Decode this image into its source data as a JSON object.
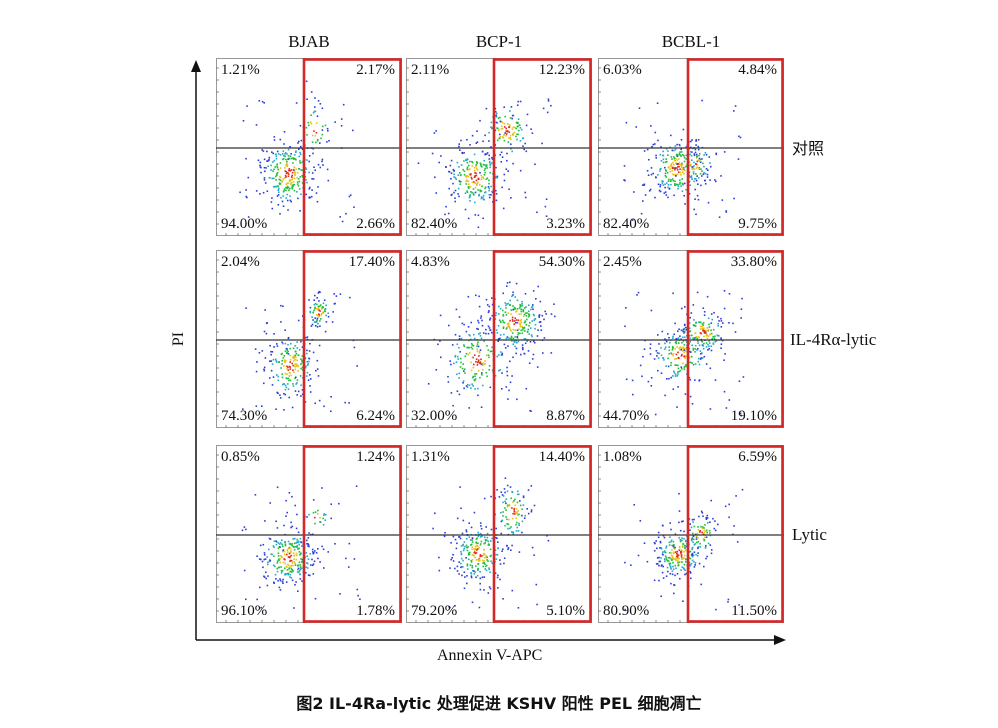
{
  "figure": {
    "columns": [
      "BJAB",
      "BCP-1",
      "BCBL-1"
    ],
    "rows": [
      "对照",
      "IL-4Rα-lytic",
      "Lytic"
    ],
    "y_axis_label": "PI",
    "x_axis_label": "Annexin V-APC",
    "caption": "图2  IL-4Ra-lytic 处理促进 KSHV 阳性 PEL 细胞凋亡",
    "colors": {
      "gate": "#d62728",
      "gridline": "#333333",
      "panel_border": "#999999",
      "density_low": "#2b3fd6",
      "density_mid": "#1fbf3a",
      "density_high": "#e8c21a",
      "density_peak": "#e02a1a"
    }
  },
  "panels": [
    {
      "row": 0,
      "col": 0,
      "ul": "1.21%",
      "ur": "2.17%",
      "ll": "94.00%",
      "lr": "2.66%"
    },
    {
      "row": 0,
      "col": 1,
      "ul": "2.11%",
      "ur": "12.23%",
      "ll": "82.40%",
      "lr": "3.23%"
    },
    {
      "row": 0,
      "col": 2,
      "ul": "6.03%",
      "ur": "4.84%",
      "ll": "82.40%",
      "lr": "9.75%"
    },
    {
      "row": 1,
      "col": 0,
      "ul": "2.04%",
      "ur": "17.40%",
      "ll": "74.30%",
      "lr": "6.24%"
    },
    {
      "row": 1,
      "col": 1,
      "ul": "4.83%",
      "ur": "54.30%",
      "ll": "32.00%",
      "lr": "8.87%"
    },
    {
      "row": 1,
      "col": 2,
      "ul": "2.45%",
      "ur": "33.80%",
      "ll": "44.70%",
      "lr": "19.10%"
    },
    {
      "row": 2,
      "col": 0,
      "ul": "0.85%",
      "ur": "1.24%",
      "ll": "96.10%",
      "lr": "1.78%"
    },
    {
      "row": 2,
      "col": 1,
      "ul": "1.31%",
      "ur": "14.40%",
      "ll": "79.20%",
      "lr": "5.10%"
    },
    {
      "row": 2,
      "col": 2,
      "ul": "1.08%",
      "ur": "6.59%",
      "ll": "80.90%",
      "lr": "11.50%"
    }
  ]
}
